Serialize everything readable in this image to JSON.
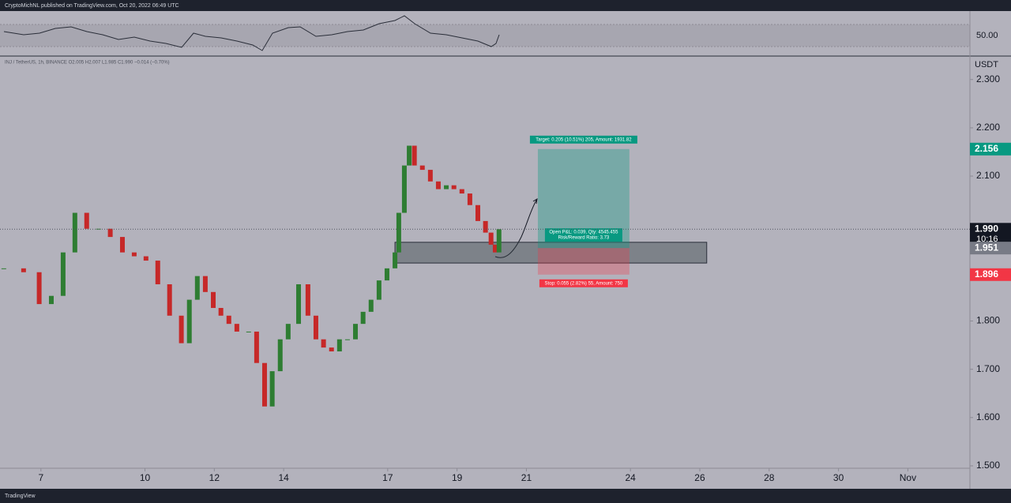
{
  "header": {
    "text": "CryptoMichNL published on TradingView.com, Oct 20, 2022 06:49 UTC"
  },
  "footer": {
    "brand": "TradingView"
  },
  "indicator": {
    "level_label": "50.00"
  },
  "chart_data": {
    "type": "candlestick",
    "legend_text": "INJ / TetherUS, 1h, BINANCE O2.005 H2.007 L1.985 C1.990 −0.014 (−0.70%)",
    "y_unit": "USDT",
    "up_color": "#2e7d32",
    "down_color": "#c62828",
    "x": [
      5.93,
      6.5,
      6.95,
      7.3,
      7.64,
      7.98,
      8.32,
      8.66,
      9.0,
      9.35,
      9.69,
      10.03,
      10.37,
      10.71,
      11.05,
      11.28,
      11.51,
      11.74,
      11.97,
      12.19,
      12.42,
      12.65,
      12.99,
      13.22,
      13.45,
      13.67,
      13.9,
      14.13,
      14.43,
      14.7,
      14.93,
      15.15,
      15.38,
      15.61,
      15.84,
      16.07,
      16.29,
      16.52,
      16.75,
      16.98,
      17.21,
      17.32,
      17.48,
      17.62,
      17.77,
      18.0,
      18.23,
      18.46,
      18.69,
      18.91,
      19.14,
      19.37,
      19.6,
      19.82,
      19.98,
      20.1,
      20.21
    ],
    "close": [
      1.909,
      1.901,
      1.835,
      1.852,
      1.942,
      2.024,
      1.991,
      1.991,
      1.974,
      1.942,
      1.934,
      1.925,
      1.876,
      1.811,
      1.754,
      1.844,
      1.893,
      1.86,
      1.827,
      1.811,
      1.794,
      1.778,
      1.778,
      1.713,
      1.623,
      1.696,
      1.762,
      1.794,
      1.876,
      1.811,
      1.762,
      1.745,
      1.737,
      1.762,
      1.762,
      1.794,
      1.819,
      1.844,
      1.884,
      1.909,
      1.942,
      2.024,
      2.122,
      2.163,
      2.122,
      2.113,
      2.089,
      2.073,
      2.081,
      2.073,
      2.064,
      2.04,
      2.007,
      1.983,
      1.958,
      1.942,
      1.99
    ],
    "xlim": [
      5.82,
      33.79
    ],
    "xticks": [
      7,
      10,
      12,
      14,
      17,
      19,
      21,
      24,
      26,
      28,
      30,
      {
        "value": 32,
        "label": "Nov"
      }
    ],
    "ylim": [
      1.495,
      2.347
    ],
    "yticks": [
      {
        "value": 2.3,
        "label": "2.300"
      },
      {
        "value": 2.2,
        "label": "2.200"
      },
      {
        "value": 2.1,
        "label": "2.100"
      },
      {
        "value": 1.8,
        "label": "1.800"
      },
      {
        "value": 1.7,
        "label": "1.700"
      },
      {
        "value": 1.6,
        "label": "1.600"
      },
      {
        "value": 1.5,
        "label": "1.500"
      }
    ],
    "zone": {
      "low": 1.92,
      "high": 1.963,
      "start": 17.21,
      "end": 26.2
    },
    "position": {
      "entry": 1.951,
      "target": 2.156,
      "stop": 1.896,
      "start": 21.33,
      "end": 23.97,
      "target_label": "Target: 0.205 (10.51%) 205, Amount: 1931.82",
      "pnl_label": "Open P&L: 0.039, Qty: 4545.455",
      "ratio_label": "Risk/Reward Ratio: 3.73",
      "stop_label": "Stop: 0.055 (2.82%) 55, Amount: 750"
    },
    "price_tags": [
      {
        "value": 2.156,
        "label": "2.156",
        "color": "#089981"
      },
      {
        "value": 1.99,
        "label": "1.990",
        "color": "#131722",
        "countdown": "10:16"
      },
      {
        "value": 1.951,
        "label": "1.951",
        "color": "#787b86"
      },
      {
        "value": 1.896,
        "label": "1.896",
        "color": "#f23645"
      }
    ]
  }
}
